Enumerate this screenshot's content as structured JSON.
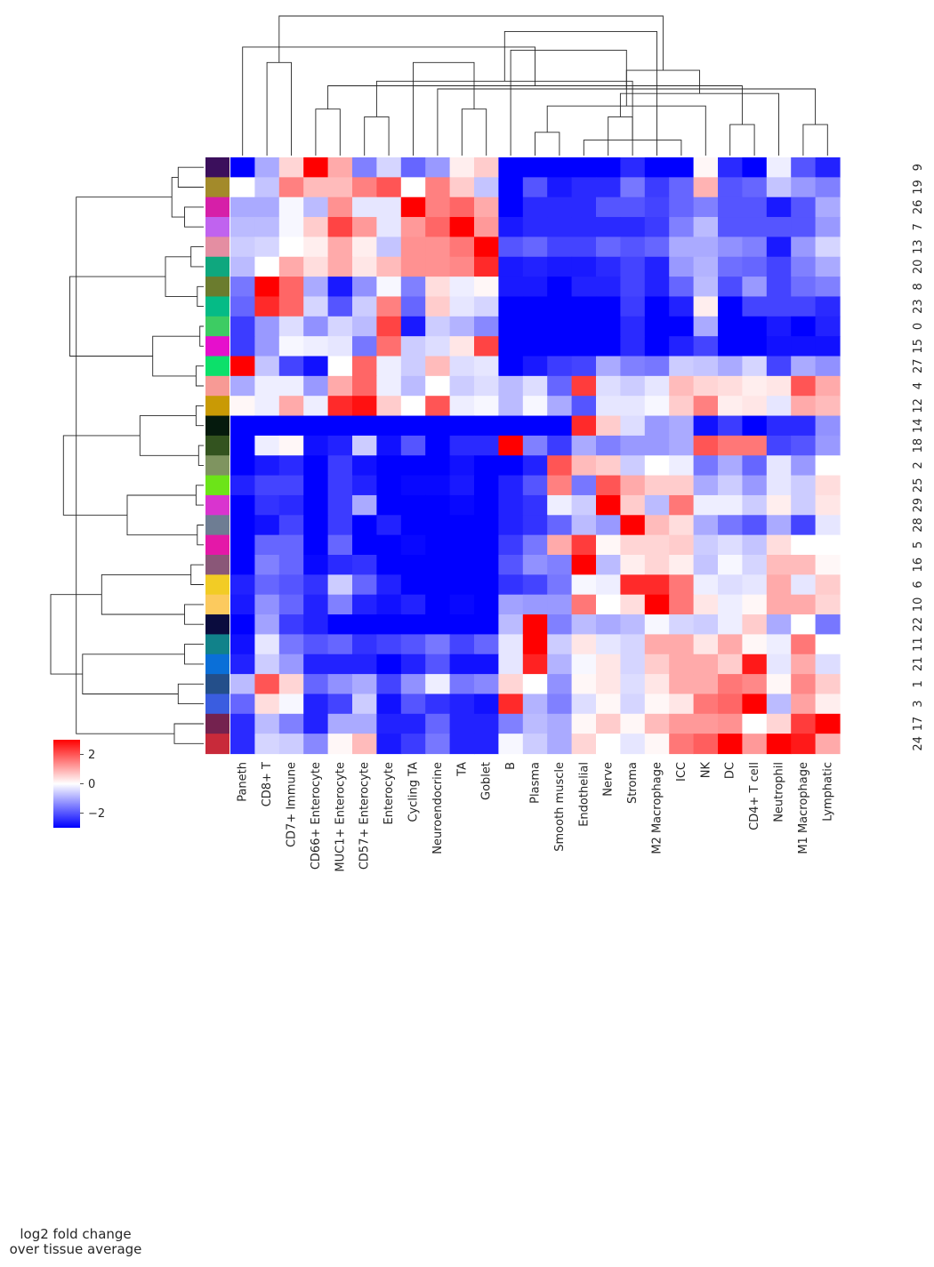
{
  "chart_data": {
    "type": "heatmap",
    "title": "",
    "columns": [
      "Paneth",
      "CD8+ T",
      "CD7+ Immune",
      "CD66+ Enterocyte",
      "MUC1+ Enterocyte",
      "CD57+ Enterocyte",
      "Enterocyte",
      "Cycling TA",
      "Neuroendocrine",
      "TA",
      "Goblet",
      "B",
      "Plasma",
      "Smooth muscle",
      "Endothelial",
      "Nerve",
      "Stroma",
      "M2 Macrophage",
      "ICC",
      "NK",
      "DC",
      "CD4+ T cell",
      "Neutrophil",
      "M1 Macrophage",
      "Lymphatic"
    ],
    "rows": [
      "9",
      "19",
      "26",
      "7",
      "13",
      "20",
      "8",
      "23",
      "0",
      "15",
      "27",
      "4",
      "12",
      "14",
      "18",
      "2",
      "25",
      "29",
      "28",
      "5",
      "16",
      "6",
      "10",
      "22",
      "11",
      "21",
      "1",
      "3",
      "17",
      "24"
    ],
    "row_colors": [
      "#3b0f5c",
      "#a38a2a",
      "#d61fa8",
      "#c063ef",
      "#e48ea2",
      "#0fa77e",
      "#6b7c2e",
      "#05bb86",
      "#3dcc63",
      "#e60fcc",
      "#0ce06a",
      "#f79a95",
      "#c99a05",
      "#051a0d",
      "#33531f",
      "#7f9460",
      "#6ce418",
      "#d934cf",
      "#6e7d93",
      "#e418a8",
      "#8a5778",
      "#f2cc25",
      "#fcca5e",
      "#0a0c3e",
      "#11828a",
      "#0a6fd8",
      "#244f8a",
      "#3a5de0",
      "#74224f",
      "#c82a3a"
    ],
    "values": [
      [
        -3,
        -1,
        0.5,
        3,
        1,
        -1.5,
        -0.5,
        -1.8,
        -1.2,
        0.2,
        0.6,
        -3,
        -3,
        -3,
        -3,
        -3,
        -2.5,
        -3,
        -3,
        0.1,
        -2.5,
        -3,
        -0.2,
        -2,
        -2.6
      ],
      [
        0,
        -0.7,
        1.5,
        0.8,
        0.8,
        1.5,
        2,
        0,
        1.5,
        0.6,
        -0.7,
        -3,
        -2,
        -2.7,
        -2.5,
        -2.5,
        -1.6,
        -2.3,
        -1.8,
        0.9,
        -2,
        -1.8,
        -0.7,
        -1.2,
        -1.5
      ],
      [
        -1,
        -1,
        -0.1,
        -0.8,
        1.3,
        -0.3,
        -0.3,
        3,
        1.5,
        1.8,
        1,
        -3,
        -2.5,
        -2.5,
        -2.5,
        -2,
        -2,
        -2.2,
        -1.8,
        -1.5,
        -2,
        -2,
        -2.7,
        -2,
        -1
      ],
      [
        -0.8,
        -0.8,
        -0.1,
        0.6,
        2.2,
        1.2,
        -0.3,
        1.2,
        1.8,
        3,
        1.2,
        -2.7,
        -2.5,
        -2.5,
        -2.5,
        -2.5,
        -2.5,
        -2.3,
        -1.5,
        -0.8,
        -2,
        -2,
        -2,
        -2,
        -1.2
      ],
      [
        -0.6,
        -0.5,
        0,
        0.2,
        1,
        0.2,
        -0.7,
        1.3,
        1.3,
        1.6,
        3,
        -2,
        -1.8,
        -2.2,
        -2.2,
        -1.8,
        -2,
        -1.8,
        -1,
        -1,
        -1.3,
        -1.5,
        -2.7,
        -1.2,
        -0.5
      ],
      [
        -0.8,
        0,
        1,
        0.4,
        1,
        0.3,
        0.8,
        1.3,
        1.3,
        1.4,
        2.5,
        -2.7,
        -2.6,
        -2.7,
        -2.7,
        -2.5,
        -2.2,
        -2.6,
        -1.2,
        -0.9,
        -1.7,
        -1.8,
        -2.2,
        -1.5,
        -1
      ],
      [
        -1.6,
        3,
        1.8,
        -1,
        -2.7,
        -1.3,
        -0.1,
        -1.5,
        0.4,
        -0.2,
        0.1,
        -2.7,
        -2.7,
        -3,
        -2.6,
        -2.6,
        -2.2,
        -2.6,
        -1.8,
        -0.8,
        -2.1,
        -1.2,
        -2.2,
        -1.7,
        -1.5
      ],
      [
        -1.8,
        2.5,
        1.8,
        -0.5,
        -2,
        -0.6,
        1.5,
        -1.8,
        0.6,
        -0.3,
        -0.5,
        -3,
        -3,
        -3,
        -3,
        -3,
        -2.3,
        -3,
        -2.6,
        0.2,
        -3,
        -2.2,
        -2.2,
        -2.2,
        -2.5
      ],
      [
        -2.3,
        -1.2,
        -0.4,
        -1.3,
        -0.5,
        -0.8,
        2.2,
        -2.7,
        -0.6,
        -0.9,
        -1.4,
        -3,
        -3,
        -3,
        -3,
        -3,
        -2.5,
        -3,
        -3,
        -1,
        -3,
        -3,
        -2.7,
        -3,
        -2.6
      ],
      [
        -2.3,
        -1.2,
        -0.1,
        -0.2,
        -0.3,
        -1.6,
        1.7,
        -0.6,
        -0.4,
        0.3,
        2.2,
        -3,
        -3,
        -3,
        -3,
        -3,
        -2.5,
        -3,
        -2.6,
        -2.2,
        -3,
        -3,
        -2.8,
        -2.8,
        -2.8
      ],
      [
        3,
        -0.7,
        -2.2,
        -2.8,
        0,
        1.8,
        -0.2,
        -0.6,
        0.8,
        -0.4,
        -0.3,
        -3,
        -2.7,
        -2.3,
        -2.2,
        -1,
        -1.5,
        -1.6,
        -0.6,
        -0.7,
        -1,
        -0.5,
        -2.2,
        -1,
        -1.3
      ],
      [
        -1,
        -0.2,
        -0.2,
        -1.2,
        1,
        1.8,
        -0.2,
        -0.8,
        0,
        -0.6,
        -0.4,
        -0.8,
        -0.4,
        -1.8,
        2.3,
        -0.4,
        -0.6,
        -0.3,
        0.8,
        0.5,
        0.4,
        0.2,
        0.3,
        2,
        1
      ],
      [
        0.1,
        -0.2,
        1,
        -0.2,
        2.5,
        2.8,
        0.6,
        0,
        2,
        -0.2,
        -0.1,
        -0.8,
        -0.1,
        -1,
        -2,
        -0.3,
        -0.3,
        -0.1,
        0.6,
        1.5,
        0.2,
        0.3,
        -0.3,
        1,
        0.8
      ],
      [
        -3,
        -3,
        -3,
        -3,
        -3,
        -3,
        -3,
        -3,
        -3,
        -3,
        -3,
        -3,
        -3,
        -3,
        2.5,
        0.6,
        -0.4,
        -1.2,
        -1,
        -2.8,
        -2.3,
        -3,
        -2.5,
        -2.5,
        -1.3
      ],
      [
        -3,
        -0.2,
        0.1,
        -2.8,
        -2.6,
        -0.6,
        -2.8,
        -2,
        -3,
        -2.5,
        -2.5,
        3,
        -1.5,
        -2.3,
        -1,
        -1.5,
        -1.2,
        -1.2,
        -1,
        2,
        1.6,
        1.6,
        -2.2,
        -2,
        -1.2
      ],
      [
        -3,
        -2.7,
        -2.5,
        -3,
        -2.3,
        -2.8,
        -3,
        -3,
        -3,
        -2.8,
        -3,
        -3,
        -2.6,
        2,
        0.8,
        0.6,
        -0.6,
        0,
        -0.2,
        -1.6,
        -1,
        -1.8,
        -0.3,
        -1.2,
        0
      ],
      [
        -2.6,
        -2.2,
        -2.2,
        -3,
        -2.3,
        -2.6,
        -3,
        -2.9,
        -2.9,
        -2.7,
        -3,
        -2.6,
        -2,
        1.5,
        -1.6,
        2,
        1,
        0.6,
        0.6,
        -1,
        -0.6,
        -1.2,
        -0.3,
        -0.6,
        0.4
      ],
      [
        -3,
        -2.4,
        -2.5,
        -3,
        -2.3,
        -1,
        -3,
        -3,
        -3,
        -2.9,
        -3,
        -2.6,
        -2.4,
        -0.2,
        -0.6,
        3,
        0.6,
        -0.8,
        1.6,
        -0.2,
        -0.2,
        -0.6,
        0.2,
        -0.6,
        0.3
      ],
      [
        -3,
        -2.8,
        -2.2,
        -3,
        -2.3,
        -3,
        -2.6,
        -3,
        -3,
        -3,
        -3,
        -2.6,
        -2.4,
        -1.8,
        -0.8,
        -1.2,
        3,
        0.8,
        0.4,
        -1,
        -1.6,
        -2,
        -1,
        -2.2,
        -0.3
      ],
      [
        -3,
        -1.8,
        -1.8,
        -3,
        -1.8,
        -3,
        -3,
        -2.9,
        -3,
        -3,
        -3,
        -2.3,
        -1.6,
        1,
        2.3,
        0.1,
        0.5,
        0.5,
        0.6,
        -0.6,
        -0.4,
        -0.7,
        0.4,
        0,
        0
      ],
      [
        -3,
        -1.5,
        -1.8,
        -2.9,
        -2.5,
        -2.4,
        -3,
        -3,
        -3,
        -3,
        -3,
        -2,
        -1.3,
        -1.5,
        3,
        -0.8,
        0.2,
        0.5,
        0.2,
        -0.7,
        -0.1,
        -0.5,
        0.8,
        0.8,
        0.1
      ],
      [
        -2.6,
        -1.8,
        -2,
        -2.4,
        -0.6,
        -1.8,
        -2.6,
        -3,
        -3,
        -3,
        -3,
        -2.4,
        -2.2,
        -1.6,
        -0.1,
        -0.2,
        2.5,
        2.5,
        1.6,
        -0.2,
        -0.4,
        -0.3,
        1,
        -0.3,
        0.6
      ],
      [
        -2.7,
        -1.3,
        -1.8,
        -2.6,
        -1.5,
        -2.6,
        -2.8,
        -2.6,
        -3,
        -2.9,
        -3,
        -1.1,
        -1.2,
        -1.2,
        1.6,
        0,
        0.4,
        3,
        1.6,
        0.3,
        -0.2,
        0.1,
        1,
        1,
        0.5
      ],
      [
        -3,
        -1.1,
        -2.3,
        -2.6,
        -3,
        -3,
        -3,
        -3,
        -3,
        -3,
        -3,
        -0.8,
        3,
        -1.5,
        -0.8,
        -1,
        -0.8,
        -0.1,
        -0.5,
        -0.6,
        -0.2,
        0.6,
        -1,
        0,
        -1.6
      ],
      [
        -2.8,
        -0.3,
        -1.6,
        -2,
        -1.8,
        -2.4,
        -2.2,
        -2,
        -1.6,
        -2.2,
        -1.8,
        -0.3,
        3,
        -0.6,
        0.3,
        -0.3,
        -0.5,
        1,
        1,
        0.3,
        1,
        0.1,
        -0.2,
        1.6,
        0
      ],
      [
        -2.6,
        -0.6,
        -1.2,
        -2.6,
        -2.6,
        -2.6,
        -3,
        -2.6,
        -2,
        -2.8,
        -2.8,
        -0.3,
        2.6,
        -0.9,
        -0.1,
        0.3,
        -0.5,
        0.6,
        1,
        1,
        0.6,
        2.7,
        -0.3,
        1,
        -0.4
      ],
      [
        -0.8,
        2,
        0.5,
        -1.8,
        -1.3,
        -1,
        -2.2,
        -1.3,
        -0.2,
        -1.6,
        -1.4,
        0.5,
        0,
        -1.3,
        0.1,
        0.3,
        -0.4,
        0.3,
        1,
        1,
        1.6,
        1.4,
        0.1,
        1.4,
        0.6
      ],
      [
        -1.8,
        0.4,
        -0.1,
        -2.6,
        -2.2,
        -0.6,
        -2.8,
        -2,
        -2.4,
        -2.6,
        -2.8,
        2.5,
        -0.9,
        -1.5,
        -0.4,
        0.1,
        -0.5,
        0.1,
        0.3,
        1.6,
        1.8,
        3,
        -0.8,
        1.1,
        0.2
      ],
      [
        -2.5,
        -0.8,
        -1.5,
        -2.6,
        -1,
        -1,
        -2.6,
        -2.6,
        -1.8,
        -2.6,
        -2.6,
        -1.5,
        -0.8,
        -1,
        0.1,
        0.6,
        0.1,
        0.8,
        1.2,
        1.2,
        1.3,
        0,
        0.5,
        2.3,
        3
      ],
      [
        -2.5,
        -0.5,
        -0.6,
        -1.4,
        0.1,
        0.8,
        -2.7,
        -2.3,
        -1.6,
        -2.6,
        -2.6,
        -0.1,
        -0.6,
        -1,
        0.5,
        0,
        -0.3,
        0.1,
        1.6,
        1.9,
        3,
        1.2,
        3,
        2.7,
        1
      ]
    ],
    "col_dendrogram": [
      [
        14,
        18,
        1
      ],
      [
        12,
        13,
        1.5
      ],
      [
        20,
        21,
        2
      ],
      [
        23,
        24,
        2
      ],
      [
        15,
        16,
        2.5
      ],
      [
        5,
        6,
        2.5
      ],
      [
        9,
        10,
        3
      ],
      [
        3,
        4,
        3
      ],
      [
        19,
        26,
        3.2
      ],
      [
        22,
        29,
        4
      ],
      [
        8,
        28,
        4.3
      ],
      [
        32,
        27,
        4.5
      ],
      [
        30,
        25,
        4.8
      ],
      [
        34,
        33,
        5.5
      ],
      [
        1,
        2,
        6
      ],
      [
        7,
        31,
        6
      ],
      [
        35,
        11,
        6.8
      ],
      [
        0,
        36,
        7
      ],
      [
        37,
        17,
        8
      ],
      [
        38,
        39,
        9
      ]
    ],
    "row_dendrogram": [
      [
        0,
        1,
        2
      ],
      [
        2,
        3,
        1.5
      ],
      [
        4,
        5,
        1
      ],
      [
        6,
        7,
        0.5
      ],
      [
        8,
        9,
        0.3
      ],
      [
        10,
        11,
        0.6
      ],
      [
        12,
        13,
        0.6
      ],
      [
        14,
        15,
        0.4
      ],
      [
        16,
        17,
        0.6
      ],
      [
        18,
        19,
        0.5
      ],
      [
        20,
        21,
        1
      ],
      [
        22,
        23,
        1.5
      ],
      [
        24,
        25,
        1.5
      ],
      [
        26,
        27,
        2
      ],
      [
        28,
        29,
        2.3
      ],
      [
        30,
        31,
        2.5
      ],
      [
        32,
        33,
        3
      ],
      [
        34,
        35,
        4
      ],
      [
        36,
        37,
        5
      ],
      [
        38,
        39,
        6
      ],
      [
        40,
        41,
        8
      ],
      [
        42,
        43,
        9.5
      ],
      [
        44,
        45,
        10
      ],
      [
        46,
        47,
        10.5
      ],
      [
        48,
        49,
        11
      ],
      [
        50,
        51,
        12
      ]
    ],
    "colorbar": {
      "label_lines": [
        "log2 fold change",
        "over tissue average"
      ],
      "ticks": [
        2,
        0,
        -2
      ],
      "range": [
        -3,
        3
      ]
    },
    "colors": {
      "low": "#0000ff",
      "mid": "#ffffff",
      "high": "#ff0000",
      "line": "#262626"
    }
  }
}
